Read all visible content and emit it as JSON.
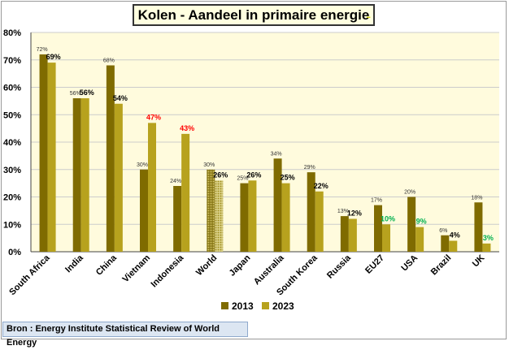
{
  "title": "Kolen - Aandeel in primaire energie",
  "title_trail": "...",
  "source": "Bron : Energy Institute Statistical Review of World Energy",
  "colors": {
    "s2013": "#7f6b00",
    "s2023": "#b7a21e",
    "plot_bg": "#fffbdd",
    "grid": "#cccccc",
    "label_red": "#ff0000",
    "label_green": "#00b050",
    "label_black": "#000000"
  },
  "chart_data": {
    "type": "bar",
    "categories": [
      "South Africa",
      "India",
      "China",
      "Vietnam",
      "Indonesia",
      "World",
      "Japan",
      "Australia",
      "South Korea",
      "Russia",
      "EU27",
      "USA",
      "Brazil",
      "UK"
    ],
    "series": [
      {
        "name": "2013",
        "values": [
          72,
          56,
          68,
          30,
          24,
          30,
          25,
          34,
          29,
          13,
          17,
          20,
          6,
          18
        ],
        "labels": [
          "72%",
          "56%",
          "68%",
          "30%",
          "24%",
          "30%",
          "25%",
          "34%",
          "29%",
          "13%",
          "17%",
          "20%",
          "6%",
          "18%"
        ]
      },
      {
        "name": "2023",
        "values": [
          69,
          56,
          54,
          47,
          43,
          26,
          26,
          25,
          22,
          12,
          10,
          9,
          4,
          3
        ],
        "labels": [
          "69%",
          "56%",
          "54%",
          "47%",
          "43%",
          "26%",
          "26%",
          "25%",
          "22%",
          "12%",
          "10%",
          "9%",
          "4%",
          "3%"
        ],
        "label_colors": [
          "black",
          "black",
          "black",
          "red",
          "red",
          "black",
          "black",
          "black",
          "black",
          "black",
          "green",
          "green",
          "black",
          "green"
        ]
      }
    ],
    "highlight_category": "World",
    "ylim": [
      0,
      80
    ],
    "yticks": [
      "0%",
      "10%",
      "20%",
      "30%",
      "40%",
      "50%",
      "60%",
      "70%",
      "80%"
    ],
    "grid": true,
    "legend": "bottom"
  }
}
